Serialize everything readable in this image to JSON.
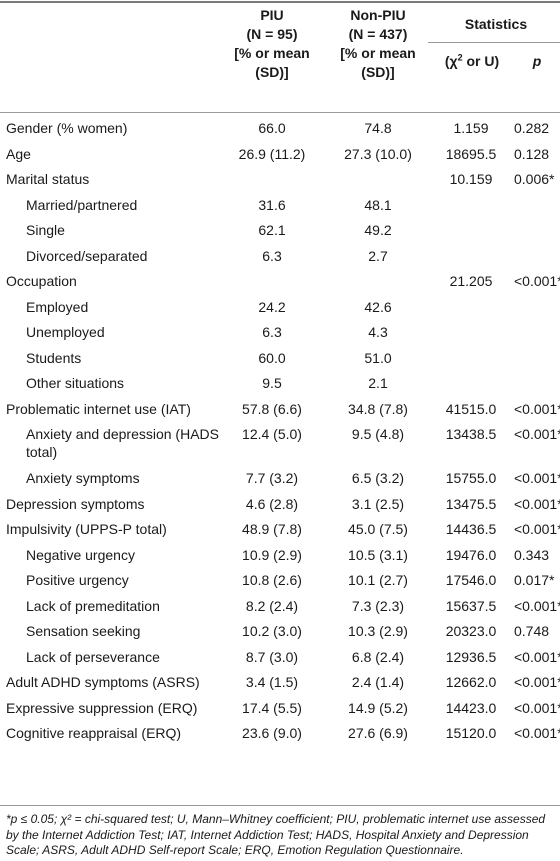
{
  "header": {
    "piu_l1": "PIU",
    "piu_l2": "(N = 95)",
    "piu_l3": "[% or mean",
    "piu_l4": "(SD)]",
    "non_l1": "Non-PIU",
    "non_l2": "(N = 437)",
    "non_l3": "[% or mean",
    "non_l4": "(SD)]",
    "statistics": "Statistics",
    "chi_or_u": "(χ",
    "chi_sup": "2",
    "chi_rest": " or U)",
    "p": "p"
  },
  "rows": [
    {
      "label": "Gender (% women)",
      "indent": false,
      "piu": "66.0",
      "non": "74.8",
      "stat": "1.159",
      "p": "0.282"
    },
    {
      "label": "Age",
      "indent": false,
      "piu": "26.9 (11.2)",
      "non": "27.3 (10.0)",
      "stat": "18695.5",
      "p": "0.128"
    },
    {
      "label": "Marital status",
      "indent": false,
      "piu": "",
      "non": "",
      "stat": "10.159",
      "p": "0.006*"
    },
    {
      "label": "Married/partnered",
      "indent": true,
      "piu": "31.6",
      "non": "48.1",
      "stat": "",
      "p": ""
    },
    {
      "label": "Single",
      "indent": true,
      "piu": "62.1",
      "non": "49.2",
      "stat": "",
      "p": ""
    },
    {
      "label": "Divorced/separated",
      "indent": true,
      "piu": "6.3",
      "non": "2.7",
      "stat": "",
      "p": ""
    },
    {
      "label": "Occupation",
      "indent": false,
      "piu": "",
      "non": "",
      "stat": "21.205",
      "p": "<0.001*"
    },
    {
      "label": "Employed",
      "indent": true,
      "piu": "24.2",
      "non": "42.6",
      "stat": "",
      "p": ""
    },
    {
      "label": "Unemployed",
      "indent": true,
      "piu": "6.3",
      "non": "4.3",
      "stat": "",
      "p": ""
    },
    {
      "label": "Students",
      "indent": true,
      "piu": "60.0",
      "non": "51.0",
      "stat": "",
      "p": ""
    },
    {
      "label": "Other situations",
      "indent": true,
      "piu": "9.5",
      "non": "2.1",
      "stat": "",
      "p": ""
    },
    {
      "label": "Problematic internet use (IAT)",
      "indent": false,
      "piu": "57.8 (6.6)",
      "non": "34.8 (7.8)",
      "stat": "41515.0",
      "p": "<0.001*"
    },
    {
      "label": "Anxiety and depression (HADS total)",
      "indent": true,
      "tall": true,
      "piu": "12.4 (5.0)",
      "non": "9.5 (4.8)",
      "stat": "13438.5",
      "p": "<0.001*"
    },
    {
      "label": "Anxiety symptoms",
      "indent": true,
      "piu": "7.7 (3.2)",
      "non": "6.5 (3.2)",
      "stat": "15755.0",
      "p": "<0.001*"
    },
    {
      "label": "Depression symptoms",
      "indent": false,
      "piu": "4.6 (2.8)",
      "non": "3.1 (2.5)",
      "stat": "13475.5",
      "p": "<0.001*"
    },
    {
      "label": "Impulsivity (UPPS-P total)",
      "indent": false,
      "piu": "48.9 (7.8)",
      "non": "45.0 (7.5)",
      "stat": "14436.5",
      "p": "<0.001*"
    },
    {
      "label": "Negative urgency",
      "indent": true,
      "piu": "10.9 (2.9)",
      "non": "10.5 (3.1)",
      "stat": "19476.0",
      "p": "0.343"
    },
    {
      "label": "Positive urgency",
      "indent": true,
      "piu": "10.8 (2.6)",
      "non": "10.1 (2.7)",
      "stat": "17546.0",
      "p": "0.017*"
    },
    {
      "label": "Lack of premeditation",
      "indent": true,
      "piu": "8.2 (2.4)",
      "non": "7.3 (2.3)",
      "stat": "15637.5",
      "p": "<0.001*"
    },
    {
      "label": "Sensation seeking",
      "indent": true,
      "piu": "10.2 (3.0)",
      "non": "10.3 (2.9)",
      "stat": "20323.0",
      "p": "0.748"
    },
    {
      "label": "Lack of perseverance",
      "indent": true,
      "piu": "8.7 (3.0)",
      "non": "6.8 (2.4)",
      "stat": "12936.5",
      "p": "<0.001*"
    },
    {
      "label": "Adult ADHD symptoms (ASRS)",
      "indent": false,
      "piu": "3.4 (1.5)",
      "non": "2.4 (1.4)",
      "stat": "12662.0",
      "p": "<0.001*"
    },
    {
      "label": "Expressive suppression (ERQ)",
      "indent": false,
      "piu": "17.4 (5.5)",
      "non": "14.9 (5.2)",
      "stat": "14423.0",
      "p": "<0.001*"
    },
    {
      "label": "Cognitive reappraisal (ERQ)",
      "indent": false,
      "piu": "23.6 (9.0)",
      "non": "27.6 (6.9)",
      "stat": "15120.0",
      "p": "<0.001*"
    }
  ],
  "footnote": "*p ≤ 0.05; χ² = chi-squared test; U, Mann–Whitney coefficient; PIU, problematic internet use assessed by the Internet Addiction Test; IAT, Internet Addiction Test; HADS, Hospital Anxiety and Depression Scale; ASRS, Adult ADHD Self-report Scale; ERQ, Emotion Regulation Questionnaire."
}
